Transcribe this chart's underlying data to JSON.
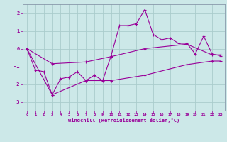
{
  "xlabel": "Windchill (Refroidissement éolien,°C)",
  "bg_color": "#cce8e8",
  "line_color": "#990099",
  "grid_color": "#aacccc",
  "spine_color": "#8899aa",
  "xlim": [
    -0.5,
    23.5
  ],
  "ylim": [
    -3.5,
    2.5
  ],
  "yticks": [
    -3,
    -2,
    -1,
    0,
    1,
    2
  ],
  "xticks": [
    0,
    1,
    2,
    3,
    4,
    5,
    6,
    7,
    8,
    9,
    10,
    11,
    12,
    13,
    14,
    15,
    16,
    17,
    18,
    19,
    20,
    21,
    22,
    23
  ],
  "series1_x": [
    0,
    1,
    2,
    3,
    4,
    5,
    6,
    7,
    8,
    9,
    10,
    11,
    12,
    13,
    14,
    15,
    16,
    17,
    18,
    19,
    20,
    21,
    22,
    23
  ],
  "series1_y": [
    0.0,
    -1.2,
    -1.3,
    -2.6,
    -1.7,
    -1.6,
    -1.3,
    -1.8,
    -1.5,
    -1.8,
    -0.4,
    1.3,
    1.3,
    1.4,
    2.2,
    0.8,
    0.5,
    0.6,
    0.3,
    0.3,
    -0.3,
    0.7,
    -0.3,
    -0.4
  ],
  "series2_x": [
    0,
    3,
    7,
    10,
    14,
    19,
    22,
    23
  ],
  "series2_y": [
    0.0,
    -0.85,
    -0.75,
    -0.45,
    0.0,
    0.25,
    -0.35,
    -0.35
  ],
  "series3_x": [
    0,
    3,
    7,
    10,
    14,
    19,
    22,
    23
  ],
  "series3_y": [
    0.0,
    -2.6,
    -1.8,
    -1.8,
    -1.5,
    -0.9,
    -0.7,
    -0.7
  ]
}
